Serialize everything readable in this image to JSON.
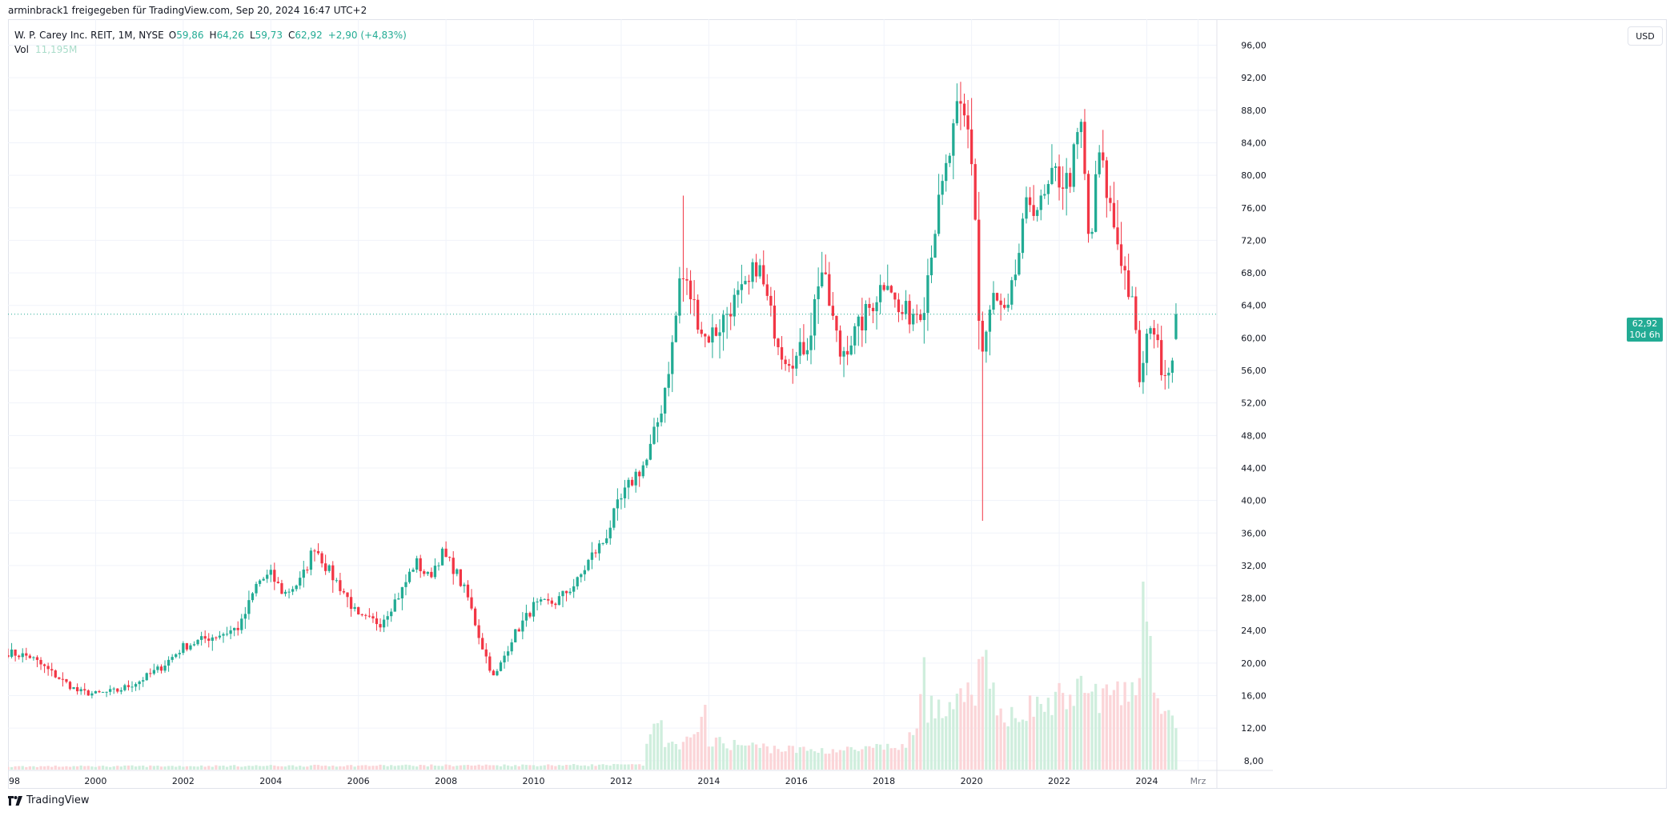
{
  "attribution": "arminbrack1 freigegeben für TradingView.com, Sep 20, 2024 16:47 UTC+2",
  "legend": {
    "symbol": "W. P. Carey Inc. REIT, 1M, NYSE",
    "open_label": "O",
    "open": "59,86",
    "high_label": "H",
    "high": "64,26",
    "low_label": "L",
    "low": "59,73",
    "close_label": "C",
    "close": "62,92",
    "change": "+2,90 (+4,83%)",
    "vol_label": "Vol",
    "vol_value": "11,195M"
  },
  "currency_button": "USD",
  "last_price": {
    "value": "62,92",
    "countdown": "10d 6h"
  },
  "brand": "TradingView",
  "colors": {
    "up": "#22ab94",
    "down": "#f23645",
    "vol_up": "#cfeedd",
    "vol_down": "#fbd5d8",
    "grid": "#f0f3fa",
    "axis_text": "#131722"
  },
  "chart_data": {
    "type": "candlestick",
    "symbol": "W. P. Carey Inc. REIT",
    "interval": "1M",
    "exchange": "NYSE",
    "y_axis": {
      "side": "right",
      "ticks": [
        "8,00",
        "12,00",
        "16,00",
        "20,00",
        "24,00",
        "28,00",
        "32,00",
        "36,00",
        "40,00",
        "44,00",
        "48,00",
        "52,00",
        "56,00",
        "60,00",
        "64,00",
        "68,00",
        "72,00",
        "76,00",
        "80,00",
        "84,00",
        "88,00",
        "92,00",
        "96,00"
      ],
      "range": [
        6.9,
        99.2
      ]
    },
    "x_axis": {
      "ticks": [
        "98",
        "2000",
        "2002",
        "2004",
        "2006",
        "2008",
        "2010",
        "2012",
        "2014",
        "2016",
        "2018",
        "2020",
        "2022",
        "2024",
        "Mrz"
      ],
      "range_years": [
        1998.0,
        2025.6
      ]
    },
    "grid": true,
    "last_close": 62.92,
    "keypoints": [
      {
        "t": 1998.0,
        "c": 21.3
      },
      {
        "t": 1998.5,
        "c": 20.8
      },
      {
        "t": 1999.0,
        "c": 18.8
      },
      {
        "t": 1999.6,
        "c": 16.5
      },
      {
        "t": 2000.0,
        "c": 16.2
      },
      {
        "t": 2000.5,
        "c": 16.6
      },
      {
        "t": 2001.0,
        "c": 17.8
      },
      {
        "t": 2001.5,
        "c": 19.5
      },
      {
        "t": 2002.0,
        "c": 22.0
      },
      {
        "t": 2002.5,
        "c": 23.0
      },
      {
        "t": 2003.0,
        "c": 23.8
      },
      {
        "t": 2003.3,
        "c": 24.5
      },
      {
        "t": 2003.7,
        "c": 30.0
      },
      {
        "t": 2004.0,
        "c": 30.8
      },
      {
        "t": 2004.3,
        "c": 28.5
      },
      {
        "t": 2004.7,
        "c": 30.2
      },
      {
        "t": 2005.0,
        "c": 34.5
      },
      {
        "t": 2005.3,
        "c": 31.5
      },
      {
        "t": 2005.7,
        "c": 28.5
      },
      {
        "t": 2006.0,
        "c": 25.5
      },
      {
        "t": 2006.5,
        "c": 25.0
      },
      {
        "t": 2007.0,
        "c": 29.0
      },
      {
        "t": 2007.3,
        "c": 32.5
      },
      {
        "t": 2007.6,
        "c": 30.5
      },
      {
        "t": 2007.9,
        "c": 33.5
      },
      {
        "t": 2008.2,
        "c": 31.5
      },
      {
        "t": 2008.5,
        "c": 28.0
      },
      {
        "t": 2008.8,
        "c": 22.5
      },
      {
        "t": 2009.1,
        "c": 18.0
      },
      {
        "t": 2009.5,
        "c": 23.0
      },
      {
        "t": 2010.0,
        "c": 27.0
      },
      {
        "t": 2010.5,
        "c": 27.5
      },
      {
        "t": 2011.0,
        "c": 30.0
      },
      {
        "t": 2011.3,
        "c": 33.0
      },
      {
        "t": 2011.6,
        "c": 35.0
      },
      {
        "t": 2011.9,
        "c": 39.0
      },
      {
        "t": 2012.3,
        "c": 43.0
      },
      {
        "t": 2012.6,
        "c": 45.0
      },
      {
        "t": 2012.9,
        "c": 51.0
      },
      {
        "t": 2013.2,
        "c": 60.0
      },
      {
        "t": 2013.35,
        "c": 68.0
      },
      {
        "t": 2013.6,
        "c": 65.0
      },
      {
        "t": 2013.9,
        "c": 60.0
      },
      {
        "t": 2014.2,
        "c": 61.0
      },
      {
        "t": 2014.5,
        "c": 64.0
      },
      {
        "t": 2014.9,
        "c": 66.0
      },
      {
        "t": 2015.1,
        "c": 69.5
      },
      {
        "t": 2015.4,
        "c": 63.0
      },
      {
        "t": 2015.7,
        "c": 58.0
      },
      {
        "t": 2016.0,
        "c": 57.5
      },
      {
        "t": 2016.3,
        "c": 60.0
      },
      {
        "t": 2016.55,
        "c": 69.0
      },
      {
        "t": 2016.8,
        "c": 63.0
      },
      {
        "t": 2017.0,
        "c": 58.0
      },
      {
        "t": 2017.4,
        "c": 61.0
      },
      {
        "t": 2017.8,
        "c": 65.0
      },
      {
        "t": 2018.1,
        "c": 68.0
      },
      {
        "t": 2018.3,
        "c": 63.0
      },
      {
        "t": 2018.6,
        "c": 63.0
      },
      {
        "t": 2018.9,
        "c": 64.0
      },
      {
        "t": 2019.1,
        "c": 72.0
      },
      {
        "t": 2019.4,
        "c": 80.0
      },
      {
        "t": 2019.7,
        "c": 88.0
      },
      {
        "t": 2019.9,
        "c": 86.0
      },
      {
        "t": 2020.05,
        "c": 80.0
      },
      {
        "t": 2020.2,
        "c": 57.0
      },
      {
        "t": 2020.5,
        "c": 65.0
      },
      {
        "t": 2020.8,
        "c": 62.0
      },
      {
        "t": 2021.0,
        "c": 68.0
      },
      {
        "t": 2021.3,
        "c": 77.0
      },
      {
        "t": 2021.6,
        "c": 76.0
      },
      {
        "t": 2021.9,
        "c": 80.0
      },
      {
        "t": 2022.2,
        "c": 79.0
      },
      {
        "t": 2022.5,
        "c": 86.0
      },
      {
        "t": 2022.7,
        "c": 70.0
      },
      {
        "t": 2022.9,
        "c": 83.0
      },
      {
        "t": 2023.2,
        "c": 75.0
      },
      {
        "t": 2023.5,
        "c": 68.0
      },
      {
        "t": 2023.7,
        "c": 63.0
      },
      {
        "t": 2023.85,
        "c": 54.0
      },
      {
        "t": 2024.1,
        "c": 63.0
      },
      {
        "t": 2024.3,
        "c": 57.0
      },
      {
        "t": 2024.5,
        "c": 56.0
      },
      {
        "t": 2024.72,
        "c": 62.92
      }
    ],
    "volume_keypoints": [
      {
        "t": 1998.0,
        "v": 0.4
      },
      {
        "t": 2012.5,
        "v": 0.6
      },
      {
        "t": 2012.8,
        "v": 8.0
      },
      {
        "t": 2013.0,
        "v": 3.0
      },
      {
        "t": 2013.8,
        "v": 4.0
      },
      {
        "t": 2013.9,
        "v": 12.0
      },
      {
        "t": 2014.0,
        "v": 3.5
      },
      {
        "t": 2016.0,
        "v": 2.5
      },
      {
        "t": 2017.5,
        "v": 2.5
      },
      {
        "t": 2018.5,
        "v": 3.0
      },
      {
        "t": 2018.8,
        "v": 6.0
      },
      {
        "t": 2018.9,
        "v": 21.0
      },
      {
        "t": 2019.0,
        "v": 8.0
      },
      {
        "t": 2019.5,
        "v": 7.0
      },
      {
        "t": 2020.0,
        "v": 10.0
      },
      {
        "t": 2020.3,
        "v": 13.0
      },
      {
        "t": 2020.6,
        "v": 7.0
      },
      {
        "t": 2021.5,
        "v": 8.0
      },
      {
        "t": 2022.5,
        "v": 10.0
      },
      {
        "t": 2023.5,
        "v": 9.0
      },
      {
        "t": 2023.8,
        "v": 13.0
      },
      {
        "t": 2023.95,
        "v": 23.0
      },
      {
        "t": 2024.2,
        "v": 10.0
      },
      {
        "t": 2024.72,
        "v": 4.0
      }
    ]
  }
}
